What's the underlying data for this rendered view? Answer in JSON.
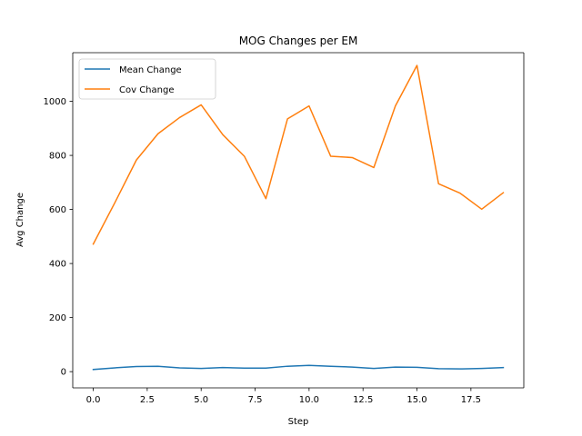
{
  "chart_data": {
    "type": "line",
    "title": "MOG Changes per EM",
    "xlabel": "Step",
    "ylabel": "Avg Change",
    "xlim": [
      -0.95,
      19.95
    ],
    "ylim": [
      -60,
      1180
    ],
    "xticks": [
      0,
      2.5,
      5,
      7.5,
      10,
      12.5,
      15,
      17.5
    ],
    "xtick_labels": [
      "0.0",
      "2.5",
      "5.0",
      "7.5",
      "10.0",
      "12.5",
      "15.0",
      "17.5"
    ],
    "yticks": [
      0,
      200,
      400,
      600,
      800,
      1000
    ],
    "ytick_labels": [
      "0",
      "200",
      "400",
      "600",
      "800",
      "1000"
    ],
    "grid": false,
    "legend_position": "top-left",
    "x": [
      0,
      1,
      2,
      3,
      4,
      5,
      6,
      7,
      8,
      9,
      10,
      11,
      12,
      13,
      14,
      15,
      16,
      17,
      18,
      19
    ],
    "series": [
      {
        "name": "Mean Change",
        "color": "#1f77b4",
        "values": [
          8,
          14,
          19,
          20,
          14,
          12,
          15,
          13,
          13,
          20,
          23,
          20,
          17,
          12,
          17,
          16,
          11,
          10,
          12,
          15
        ]
      },
      {
        "name": "Cov Change",
        "color": "#ff7f0e",
        "values": [
          472,
          625,
          783,
          880,
          940,
          987,
          877,
          797,
          640,
          935,
          983,
          797,
          792,
          755,
          983,
          1133,
          695,
          660,
          601,
          662
        ]
      }
    ]
  }
}
